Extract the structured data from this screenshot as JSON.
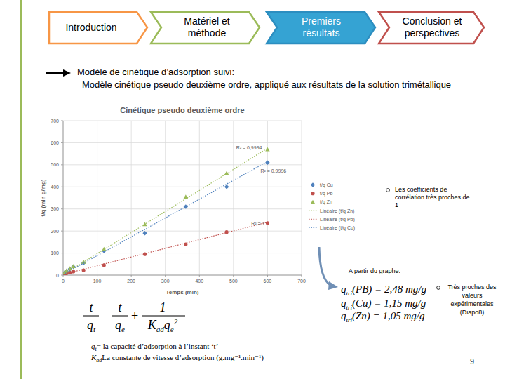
{
  "nav": [
    "Introduction",
    "Matériel et méthode",
    "Premiers résultats",
    "Conclusion et perspectives"
  ],
  "heading": {
    "line1": "Modèle de cinétique d’adsorption suivi:",
    "line2": "Modèle cinétique pseudo deuxième ordre, appliqué aux résultats de la solution trimétallique"
  },
  "chart_data": {
    "type": "scatter",
    "title": "Cinétique pseudo deuxième ordre",
    "x_label": "Temps (min)",
    "y_label": "t/q (min g/mg)",
    "x": [
      5,
      10,
      20,
      30,
      60,
      120,
      240,
      360,
      480,
      600
    ],
    "xlim": [
      0,
      700
    ],
    "ylim": [
      0,
      700
    ],
    "xticks": [
      0,
      100,
      200,
      300,
      400,
      500,
      600,
      700
    ],
    "yticks": [
      0,
      100,
      200,
      300,
      400,
      500,
      600,
      700
    ],
    "grid": true,
    "legend": "right",
    "series": [
      {
        "name": "t/q Cu",
        "color": "#4f81bd",
        "marker": "diamond",
        "values": [
          12,
          18,
          28,
          38,
          55,
          110,
          190,
          310,
          400,
          510
        ]
      },
      {
        "name": "t/q Pb",
        "color": "#c0504d",
        "marker": "circle",
        "values": [
          5,
          8,
          12,
          16,
          22,
          45,
          95,
          140,
          195,
          236
        ]
      },
      {
        "name": "t/q Zn",
        "color": "#9bbb59",
        "marker": "triangle",
        "values": [
          14,
          20,
          30,
          40,
          60,
          118,
          230,
          355,
          462,
          570
        ]
      },
      {
        "name": "Linéaire (t/q Zn)",
        "type": "line",
        "line_style": "dotted",
        "color": "#9bbb59",
        "x": [
          0,
          600
        ],
        "values": [
          2,
          575
        ],
        "annotation": "R² = 0,9994"
      },
      {
        "name": "Linéaire (t/q Pb)",
        "type": "line",
        "line_style": "dotted",
        "color": "#c0504d",
        "x": [
          0,
          600
        ],
        "values": [
          3,
          240
        ],
        "annotation": "R² = 1"
      },
      {
        "name": "Linéaire (t/q Cu)",
        "type": "line",
        "line_style": "dotted",
        "color": "#4f81bd",
        "x": [
          0,
          600
        ],
        "values": [
          3,
          515
        ],
        "annotation": "R² = 0,9996"
      }
    ]
  },
  "notes": {
    "correlation": "Les coefficients de corrélation très proches de 1",
    "from_graph": "A partir du graphe:",
    "results": [
      {
        "main": "q",
        "sub": "tri",
        "rest": "(PB) = 2,48 mg/g"
      },
      {
        "main": "q",
        "sub": "tri",
        "rest": "(Cu) = 1,15 mg/g"
      },
      {
        "main": "q",
        "sub": "tri",
        "rest": "(Zn) = 1,05 mg/g"
      }
    ],
    "comparison": "Très proches des valeurs expérimentales (Diapo8)"
  },
  "formula": {
    "lhs": {
      "num": "t",
      "den": [
        {
          "main": "q",
          "sub": "t"
        }
      ]
    },
    "eq": "=",
    "term1": {
      "num": "t",
      "den": [
        {
          "main": "q",
          "sub": "e"
        }
      ]
    },
    "plus": "+",
    "term2": {
      "num": "1",
      "den": [
        {
          "main": "K",
          "sub": "ad"
        },
        {
          "main": "q",
          "sub": "e",
          "sup": "2"
        }
      ]
    }
  },
  "definitions": [
    {
      "main": "q",
      "sub": "t",
      "rest": "= la capacité d’adsorption à l’instant ‘t’"
    },
    {
      "main": "K",
      "sub": "ad",
      "rest": "La constante de vitesse d’adsorption (g.mg⁻¹.min⁻¹)"
    }
  ],
  "page_number": 9
}
